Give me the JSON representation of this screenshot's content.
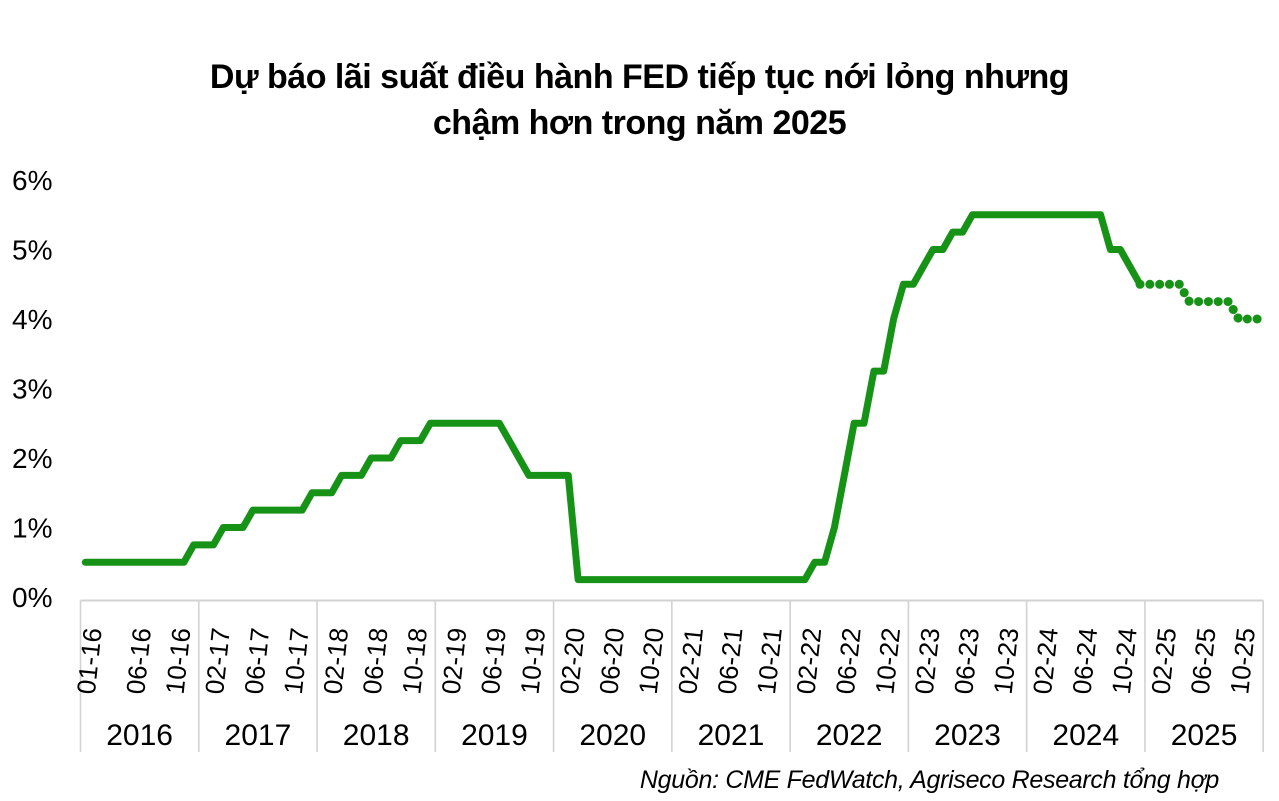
{
  "chart_data": {
    "type": "line",
    "title_lines": [
      "Dự báo lãi suất điều hành FED tiếp tục nới lỏng nhưng",
      "chậm hơn trong năm 2025"
    ],
    "source_note": "Nguồn: CME FedWatch, Agriseco Research tổng hợp",
    "unit": "%",
    "y_axis": {
      "range": [
        0,
        6
      ],
      "ticks": [
        {
          "label": "0%",
          "value": 0
        },
        {
          "label": "1%",
          "value": 1
        },
        {
          "label": "2%",
          "value": 2
        },
        {
          "label": "3%",
          "value": 3
        },
        {
          "label": "4%",
          "value": 4
        },
        {
          "label": "5%",
          "value": 5
        },
        {
          "label": "6%",
          "value": 6
        }
      ]
    },
    "x_axis": {
      "total_months": 120,
      "month_ticks": [
        {
          "label": "01-16",
          "index": 0
        },
        {
          "label": "06-16",
          "index": 5
        },
        {
          "label": "10-16",
          "index": 9
        },
        {
          "label": "02-17",
          "index": 13
        },
        {
          "label": "06-17",
          "index": 17
        },
        {
          "label": "10-17",
          "index": 21
        },
        {
          "label": "02-18",
          "index": 25
        },
        {
          "label": "06-18",
          "index": 29
        },
        {
          "label": "10-18",
          "index": 33
        },
        {
          "label": "02-19",
          "index": 37
        },
        {
          "label": "06-19",
          "index": 41
        },
        {
          "label": "10-19",
          "index": 45
        },
        {
          "label": "02-20",
          "index": 49
        },
        {
          "label": "06-20",
          "index": 53
        },
        {
          "label": "10-20",
          "index": 57
        },
        {
          "label": "02-21",
          "index": 61
        },
        {
          "label": "06-21",
          "index": 65
        },
        {
          "label": "10-21",
          "index": 69
        },
        {
          "label": "02-22",
          "index": 73
        },
        {
          "label": "06-22",
          "index": 77
        },
        {
          "label": "10-22",
          "index": 81
        },
        {
          "label": "02-23",
          "index": 85
        },
        {
          "label": "06-23",
          "index": 89
        },
        {
          "label": "10-23",
          "index": 93
        },
        {
          "label": "02-24",
          "index": 97
        },
        {
          "label": "06-24",
          "index": 101
        },
        {
          "label": "10-24",
          "index": 105
        },
        {
          "label": "02-25",
          "index": 109
        },
        {
          "label": "06-25",
          "index": 113
        },
        {
          "label": "10-25",
          "index": 117
        }
      ],
      "year_labels": [
        "2016",
        "2017",
        "2018",
        "2019",
        "2020",
        "2021",
        "2022",
        "2023",
        "2024",
        "2025"
      ]
    },
    "series": [
      {
        "name": "historical",
        "style": "solid",
        "start_index": 0,
        "values": [
          0.5,
          0.5,
          0.5,
          0.5,
          0.5,
          0.5,
          0.5,
          0.5,
          0.5,
          0.5,
          0.5,
          0.75,
          0.75,
          0.75,
          1,
          1,
          1,
          1.25,
          1.25,
          1.25,
          1.25,
          1.25,
          1.25,
          1.5,
          1.5,
          1.5,
          1.75,
          1.75,
          1.75,
          2,
          2,
          2,
          2.25,
          2.25,
          2.25,
          2.5,
          2.5,
          2.5,
          2.5,
          2.5,
          2.5,
          2.5,
          2.5,
          2.25,
          2,
          1.75,
          1.75,
          1.75,
          1.75,
          1.75,
          0.25,
          0.25,
          0.25,
          0.25,
          0.25,
          0.25,
          0.25,
          0.25,
          0.25,
          0.25,
          0.25,
          0.25,
          0.25,
          0.25,
          0.25,
          0.25,
          0.25,
          0.25,
          0.25,
          0.25,
          0.25,
          0.25,
          0.25,
          0.25,
          0.5,
          0.5,
          1,
          1.75,
          2.5,
          2.5,
          3.25,
          3.25,
          4,
          4.5,
          4.5,
          4.75,
          5,
          5,
          5.25,
          5.25,
          5.5,
          5.5,
          5.5,
          5.5,
          5.5,
          5.5,
          5.5,
          5.5,
          5.5,
          5.5,
          5.5,
          5.5,
          5.5,
          5.5,
          5,
          5,
          4.75,
          4.5
        ]
      },
      {
        "name": "forecast",
        "style": "dotted",
        "start_index": 108,
        "values": [
          4.5,
          4.5,
          4.5,
          4.5,
          4.25,
          4.25,
          4.25,
          4.25,
          4.25,
          4,
          4,
          4
        ]
      }
    ],
    "colors": {
      "line": "#169316",
      "axis": "#d2d2d2",
      "text": "#000000",
      "background": "#ffffff"
    }
  }
}
